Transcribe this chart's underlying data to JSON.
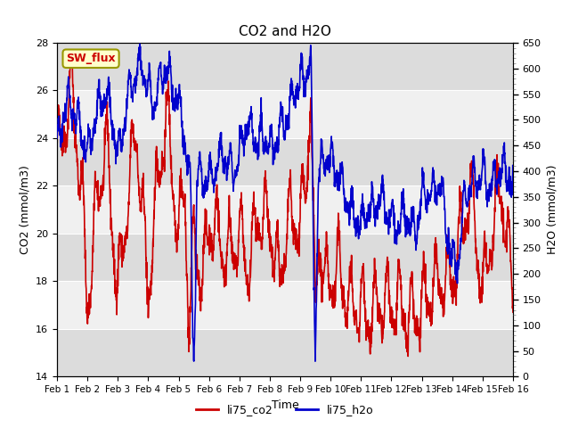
{
  "title": "CO2 and H2O",
  "xlabel": "Time",
  "ylabel_left": "CO2 (mmol/m3)",
  "ylabel_right": "H2O (mmol/m3)",
  "ylim_left": [
    14,
    28
  ],
  "ylim_right": [
    0,
    650
  ],
  "yticks_left": [
    14,
    16,
    18,
    20,
    22,
    24,
    26,
    28
  ],
  "yticks_right": [
    0,
    50,
    100,
    150,
    200,
    250,
    300,
    350,
    400,
    450,
    500,
    550,
    600,
    650
  ],
  "xtick_labels": [
    "Feb 1",
    "Feb 2",
    "Feb 3",
    "Feb 4",
    "Feb 5",
    "Feb 6",
    "Feb 7",
    "Feb 8",
    "Feb 9",
    "Feb 10",
    "Feb 11",
    "Feb 12",
    "Feb 13",
    "Feb 14",
    "Feb 15",
    "Feb 16"
  ],
  "color_co2": "#cc0000",
  "color_h2o": "#0000cc",
  "legend_label_co2": "li75_co2",
  "legend_label_h2o": "li75_h2o",
  "sw_flux_box_facecolor": "#ffffcc",
  "sw_flux_box_edgecolor": "#999900",
  "sw_flux_text": "SW_flux",
  "sw_flux_text_color": "#cc0000",
  "bg_color": "#ffffff",
  "plot_bg_color": "#ffffff",
  "grid_color": "#cccccc",
  "band_light": "#f0f0f0",
  "band_dark": "#dcdcdc",
  "n_points": 2000,
  "days": 15
}
